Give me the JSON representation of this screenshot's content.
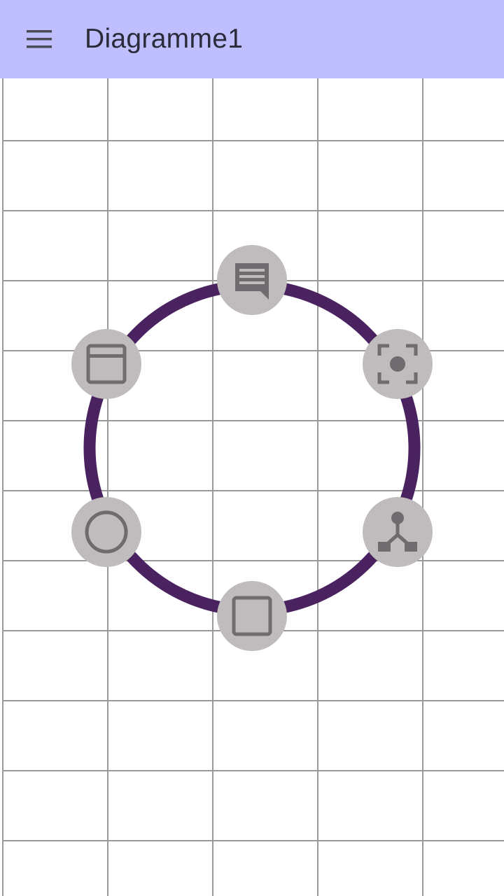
{
  "app_bar": {
    "title": "Diagramme1",
    "menu_icon": "hamburger-menu-icon",
    "background": "#bfbfff"
  },
  "radial_menu": {
    "ring_color": "#4a2260",
    "button_color": "#c0bcbd",
    "icon_color": "#6e6c6e",
    "items": [
      {
        "name": "comment",
        "icon": "comment-icon"
      },
      {
        "name": "focus",
        "icon": "center-focus-icon"
      },
      {
        "name": "network",
        "icon": "branch-node-icon"
      },
      {
        "name": "square",
        "icon": "square-shape-icon"
      },
      {
        "name": "circle",
        "icon": "circle-shape-icon"
      },
      {
        "name": "window",
        "icon": "window-shape-icon"
      }
    ]
  },
  "canvas": {
    "grid": true,
    "grid_color": "#9a9a9a"
  }
}
